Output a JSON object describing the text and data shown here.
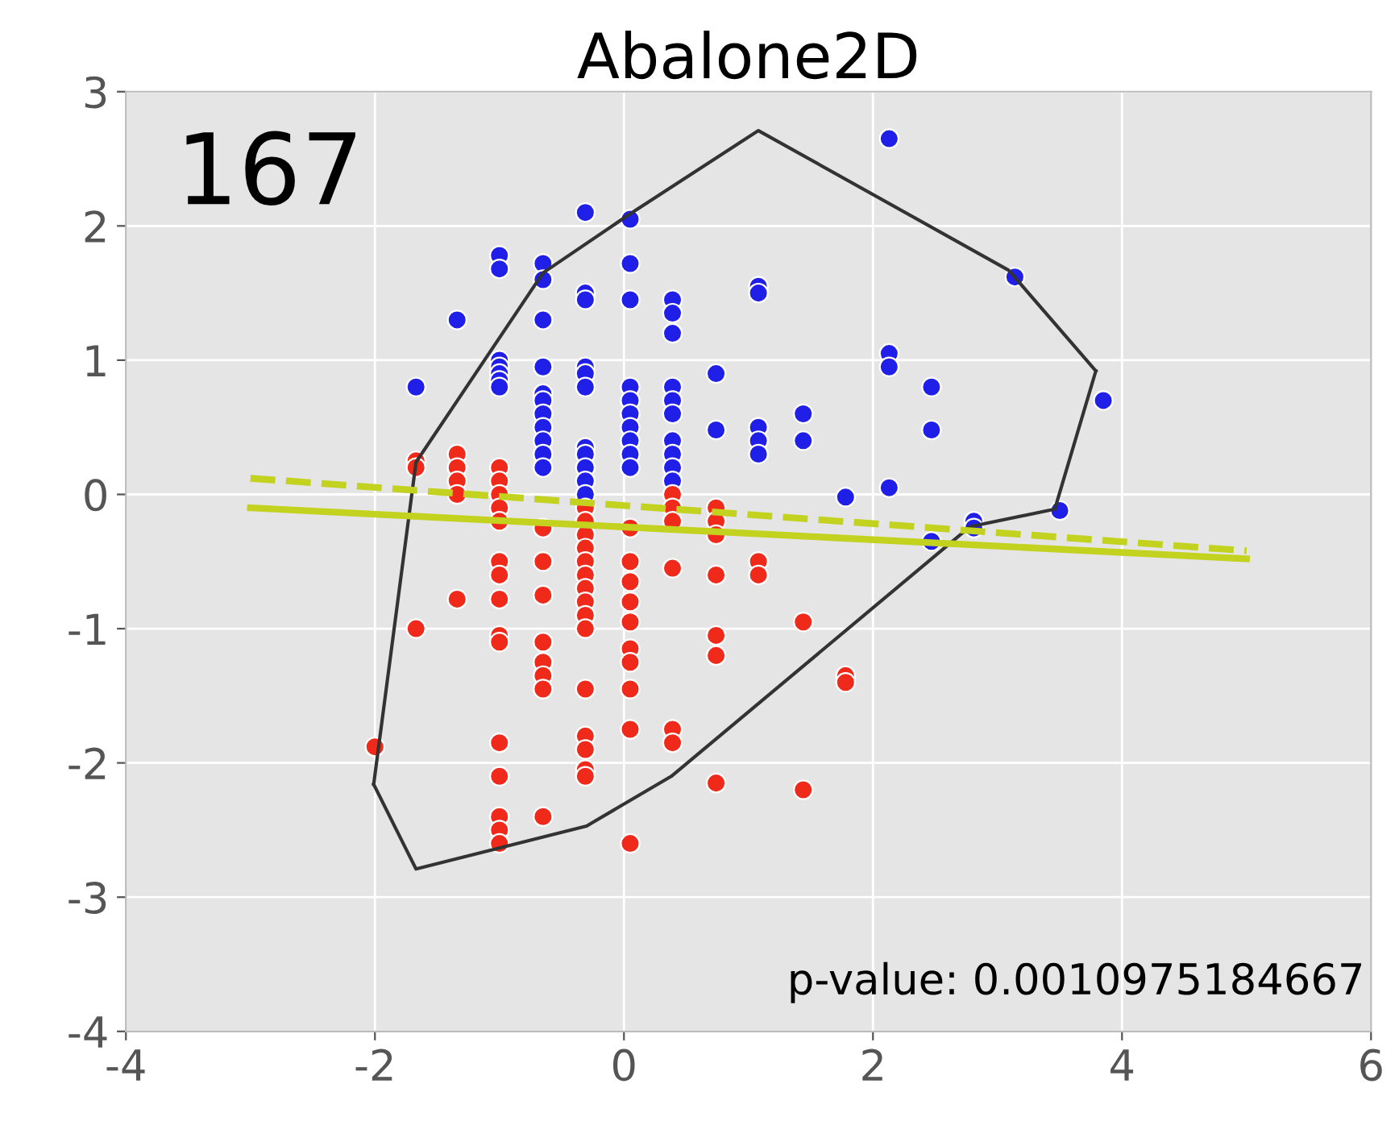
{
  "chart_data": {
    "type": "scatter",
    "title": "Abalone2D",
    "xlim": [
      -4,
      6
    ],
    "ylim": [
      -4,
      3
    ],
    "xticks": [
      -4,
      -2,
      0,
      2,
      4,
      6
    ],
    "yticks": [
      -4,
      -3,
      -2,
      -1,
      0,
      1,
      2,
      3
    ],
    "grid": true,
    "marker": "circle",
    "legend": false,
    "annotations": [
      "167",
      "p-value: 0.0010975184667"
    ],
    "series": [
      {
        "color": "#1f1fe8",
        "x": [
          -1.67,
          -1.34,
          -1,
          -1,
          -1,
          -1,
          -1,
          -1,
          -1,
          -0.65,
          -0.65,
          -0.65,
          -0.65,
          -0.65,
          -0.65,
          -0.65,
          -0.65,
          -0.65,
          -0.65,
          -0.65,
          -0.31,
          -0.31,
          -0.31,
          -0.31,
          -0.31,
          -0.31,
          -0.31,
          -0.31,
          -0.31,
          -0.31,
          -0.31,
          0.05,
          0.05,
          0.05,
          0.05,
          0.05,
          0.05,
          0.05,
          0.05,
          0.05,
          0.05,
          0.39,
          0.39,
          0.39,
          0.39,
          0.39,
          0.39,
          0.39,
          0.39,
          0.39,
          0.39,
          0.74,
          0.74,
          1.08,
          1.08,
          1.08,
          1.08,
          1.08,
          1.44,
          1.44,
          1.78,
          2.13,
          2.13,
          2.13,
          2.13,
          2.47,
          2.47,
          2.47,
          2.81,
          2.81,
          3.14,
          3.5,
          3.85
        ],
        "values": [
          0.8,
          1.3,
          1.78,
          1.68,
          1.0,
          0.95,
          0.9,
          0.85,
          0.8,
          1.72,
          1.6,
          1.3,
          0.95,
          0.75,
          0.7,
          0.6,
          0.5,
          0.4,
          0.3,
          0.2,
          2.1,
          1.5,
          1.45,
          0.95,
          0.9,
          0.8,
          0.35,
          0.3,
          0.2,
          0.1,
          0.0,
          2.05,
          1.72,
          1.45,
          0.8,
          0.7,
          0.6,
          0.5,
          0.4,
          0.3,
          0.2,
          1.45,
          1.35,
          1.2,
          0.8,
          0.7,
          0.6,
          0.4,
          0.3,
          0.2,
          0.1,
          0.9,
          0.48,
          1.55,
          1.5,
          0.5,
          0.4,
          0.3,
          0.6,
          0.4,
          -0.02,
          2.65,
          1.05,
          0.95,
          0.05,
          0.8,
          0.48,
          -0.35,
          -0.2,
          -0.25,
          1.62,
          -0.12,
          0.7
        ]
      },
      {
        "color": "#f02a1a",
        "x": [
          -1.67,
          -1.67,
          -1.67,
          -2.0,
          -1.34,
          -1.34,
          -1.34,
          -1.34,
          -1.34,
          -1,
          -1,
          -1,
          -1,
          -1,
          -1,
          -1,
          -1,
          -1,
          -1,
          -1,
          -1,
          -1,
          -1,
          -1,
          -0.65,
          -0.65,
          -0.65,
          -0.65,
          -0.65,
          -0.65,
          -0.65,
          -0.65,
          -0.31,
          -0.31,
          -0.31,
          -0.31,
          -0.31,
          -0.31,
          -0.31,
          -0.31,
          -0.31,
          -0.31,
          -0.31,
          -0.31,
          -0.31,
          -0.31,
          -0.31,
          0.05,
          0.05,
          0.05,
          0.05,
          0.05,
          0.05,
          0.05,
          0.05,
          0.05,
          0.05,
          0.39,
          0.39,
          0.39,
          0.39,
          0.39,
          0.39,
          0.74,
          0.74,
          0.74,
          0.74,
          0.74,
          0.74,
          0.74,
          1.08,
          1.08,
          1.44,
          1.44,
          1.78,
          1.78
        ],
        "values": [
          0.25,
          0.2,
          -1.0,
          -1.88,
          0.3,
          0.2,
          0.1,
          0.0,
          -0.78,
          0.2,
          0.1,
          0.0,
          -0.1,
          -0.2,
          -0.5,
          -0.6,
          -0.78,
          -1.05,
          -1.1,
          -1.85,
          -2.1,
          -2.4,
          -2.5,
          -2.6,
          -0.25,
          -0.5,
          -0.75,
          -1.1,
          -1.25,
          -1.35,
          -1.45,
          -2.4,
          -0.1,
          -0.2,
          -0.3,
          -0.4,
          -0.5,
          -0.6,
          -0.7,
          -0.8,
          -0.9,
          -1.0,
          -1.45,
          -1.8,
          -1.9,
          -2.05,
          -2.1,
          -0.25,
          -0.5,
          -0.65,
          -0.8,
          -0.95,
          -1.15,
          -1.25,
          -1.45,
          -1.75,
          -2.6,
          0.0,
          -0.1,
          -0.2,
          -0.55,
          -1.75,
          -1.85,
          -0.1,
          -0.2,
          -0.3,
          -0.6,
          -1.05,
          -1.2,
          -2.15,
          -0.5,
          -0.6,
          -0.95,
          -2.2,
          -1.35,
          -1.4
        ]
      },
      {
        "type": "line",
        "color": "#333333",
        "marker": "none",
        "line_style": "solid",
        "x": [
          -2.01,
          -1.67,
          -0.65,
          0.05,
          1.08,
          3.09,
          3.79
        ],
        "values": [
          -2.16,
          0.24,
          1.65,
          2.09,
          2.71,
          1.67,
          0.92
        ]
      },
      {
        "type": "line",
        "color": "#333333",
        "marker": "none",
        "line_style": "solid",
        "x": [
          -2.01,
          -1.67,
          -0.3,
          0.38,
          2.78,
          3.46,
          3.79
        ],
        "values": [
          -2.16,
          -2.79,
          -2.47,
          -2.1,
          -0.24,
          -0.11,
          0.92
        ]
      },
      {
        "type": "line",
        "color": "#c2d21e",
        "marker": "none",
        "line_style": "solid",
        "x": [
          -3,
          5
        ],
        "values": [
          -0.1,
          -0.48
        ]
      },
      {
        "type": "line",
        "color": "#c2d21e",
        "marker": "none",
        "line_style": "dashed",
        "x": [
          -3,
          5
        ],
        "values": [
          0.12,
          -0.42
        ]
      }
    ]
  }
}
